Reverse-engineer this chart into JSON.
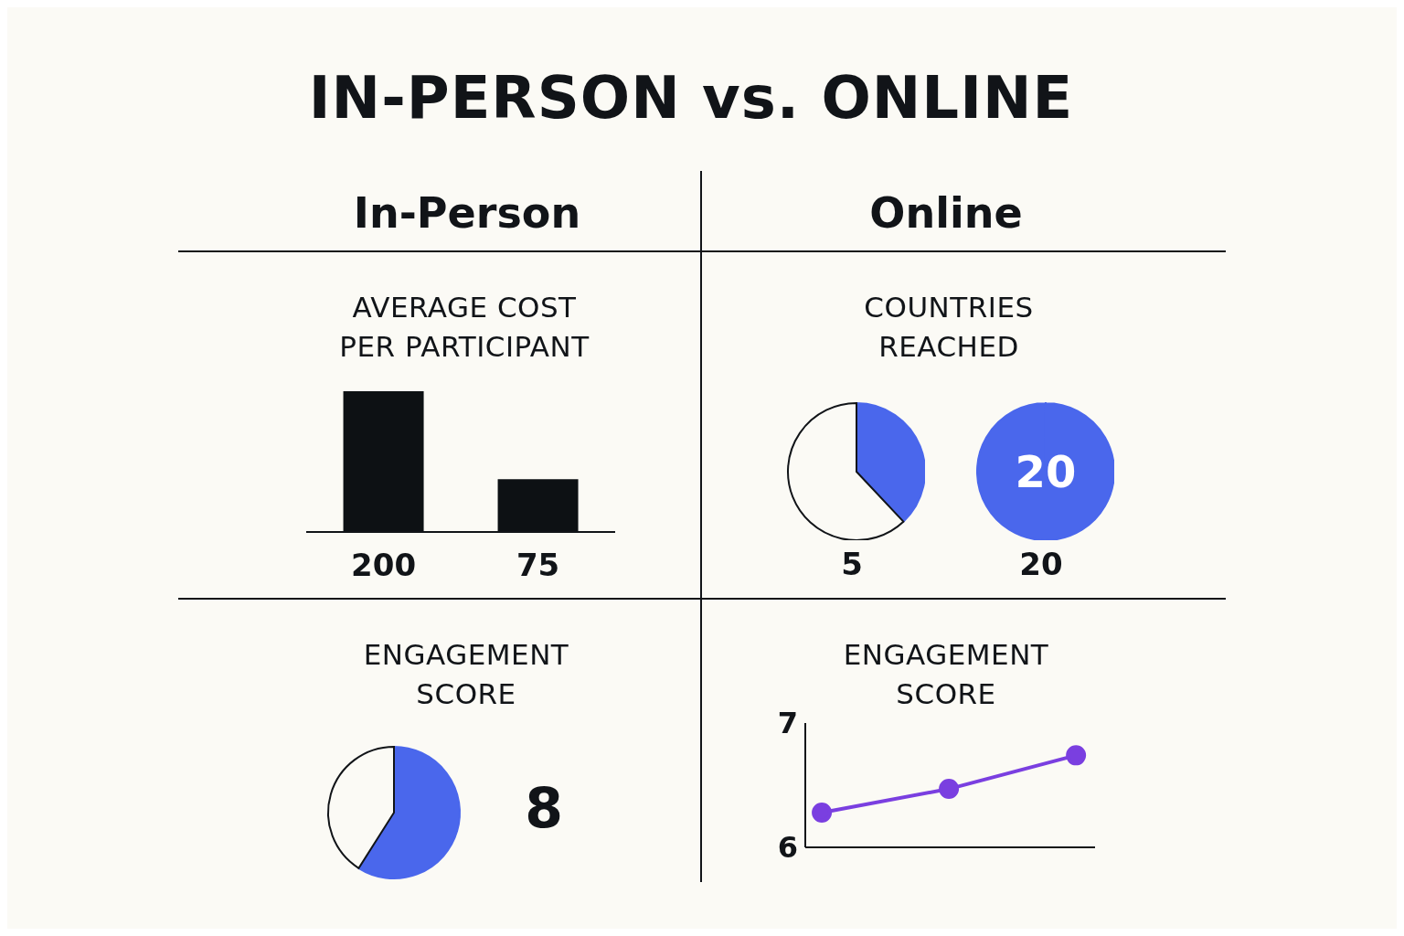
{
  "chart_data": [
    {
      "type": "other",
      "title": "IN-PERSON vs. ONLINE",
      "annotations": [
        "In-Person",
        "Online"
      ]
    },
    {
      "type": "bar",
      "title": "AVERAGE COST\nPER PARTICIPANT",
      "categories": [
        null,
        null
      ],
      "values": [
        200,
        75
      ],
      "color": "#0d1114",
      "data_labels": true
    },
    {
      "type": "pie",
      "title": "COUNTRIES\nREACHED",
      "categories": [
        null,
        null
      ],
      "values": [
        38,
        62
      ],
      "colors": [
        "#4a67ec",
        "#fbfaf5"
      ],
      "annotations": [
        "5"
      ]
    },
    {
      "type": "pie",
      "categories": [
        null
      ],
      "values": [
        20
      ],
      "colors": [
        "#4a67ec"
      ],
      "data_labels": true,
      "annotations": [
        "20"
      ]
    },
    {
      "type": "pie",
      "title": "ENGAGEMENT\nSCORE",
      "categories": [
        null,
        null
      ],
      "values": [
        59,
        41
      ],
      "colors": [
        "#4a67ec",
        "#fbfaf5"
      ],
      "annotations": [
        "8"
      ]
    },
    {
      "type": "line",
      "title": "ENGAGEMENT\nSCORE",
      "categories": [
        null,
        null,
        null
      ],
      "series": [
        {
          "color": "#7a3fe0",
          "values": [
            6.28,
            6.47,
            6.74
          ]
        }
      ],
      "ylim": [
        6,
        7
      ],
      "yticks": [
        6,
        7
      ],
      "marker": "circle",
      "tick_labels": "y"
    }
  ]
}
